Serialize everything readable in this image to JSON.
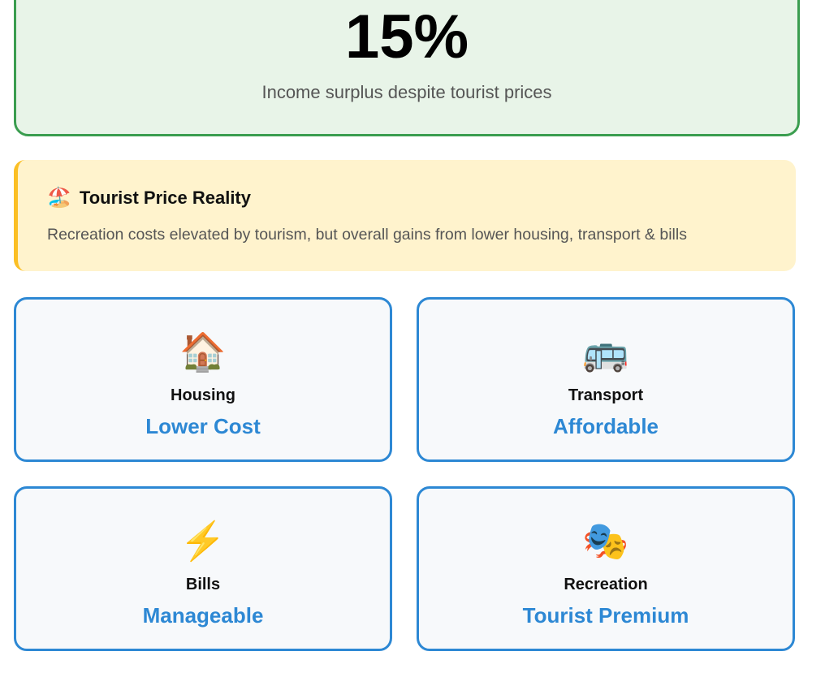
{
  "summary": {
    "value": "15%",
    "caption": "Income surplus despite tourist prices",
    "accent": "#3a9d4f"
  },
  "notice": {
    "icon": "beach-umbrella-icon",
    "icon_glyph": "🏖️",
    "title": "Tourist Price Reality",
    "text": "Recreation costs elevated by tourism, but overall gains from lower housing, transport & bills",
    "accent": "#fbbf24"
  },
  "categories": [
    {
      "icon": "house-icon",
      "glyph": "🏠",
      "label": "Housing",
      "value": "Lower Cost"
    },
    {
      "icon": "bus-icon",
      "glyph": "🚌",
      "label": "Transport",
      "value": "Affordable"
    },
    {
      "icon": "lightning-icon",
      "glyph": "⚡",
      "label": "Bills",
      "value": "Manageable"
    },
    {
      "icon": "theater-masks-icon",
      "glyph": "🎭",
      "label": "Recreation",
      "value": "Tourist Premium"
    }
  ],
  "colors": {
    "card_border": "#2d88d4",
    "value_text": "#2d88d4"
  }
}
